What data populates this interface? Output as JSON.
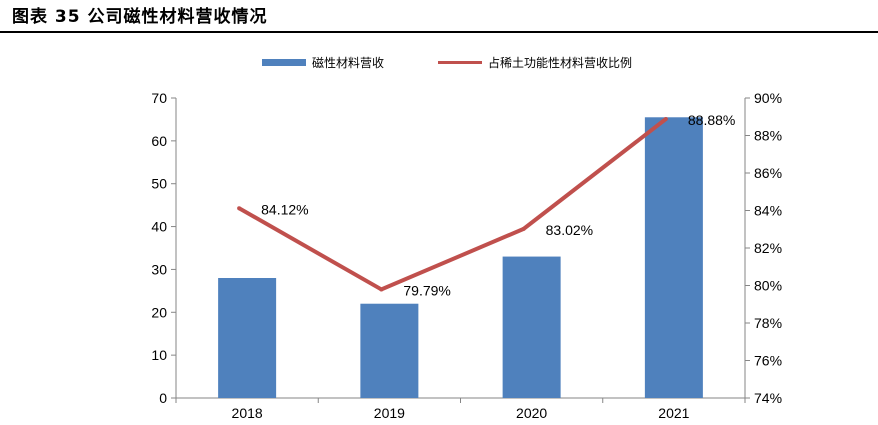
{
  "figure": {
    "title": "图表 35 公司磁性材料营收情况"
  },
  "chart_data": {
    "type": "bar+line",
    "categories": [
      "2018",
      "2019",
      "2020",
      "2021"
    ],
    "bar_series": {
      "name": "磁性材料营收",
      "values": [
        28,
        22,
        33,
        65.5
      ],
      "axis": "left",
      "color": "#4F81BD"
    },
    "line_series": {
      "name": "占稀土功能性材料营收比例",
      "values": [
        84.12,
        79.79,
        83.02,
        88.88
      ],
      "labels": [
        "84.12%",
        "79.79%",
        "83.02%",
        "88.88%"
      ],
      "axis": "right",
      "color": "#C0504D"
    },
    "y_left": {
      "min": 0,
      "max": 70,
      "ticks": [
        "0",
        "10",
        "20",
        "30",
        "40",
        "50",
        "60",
        "70"
      ]
    },
    "y_right": {
      "min": 74,
      "max": 90,
      "ticks": [
        "74%",
        "76%",
        "78%",
        "80%",
        "82%",
        "84%",
        "86%",
        "88%",
        "90%"
      ]
    },
    "legend": {
      "position": "top"
    }
  }
}
